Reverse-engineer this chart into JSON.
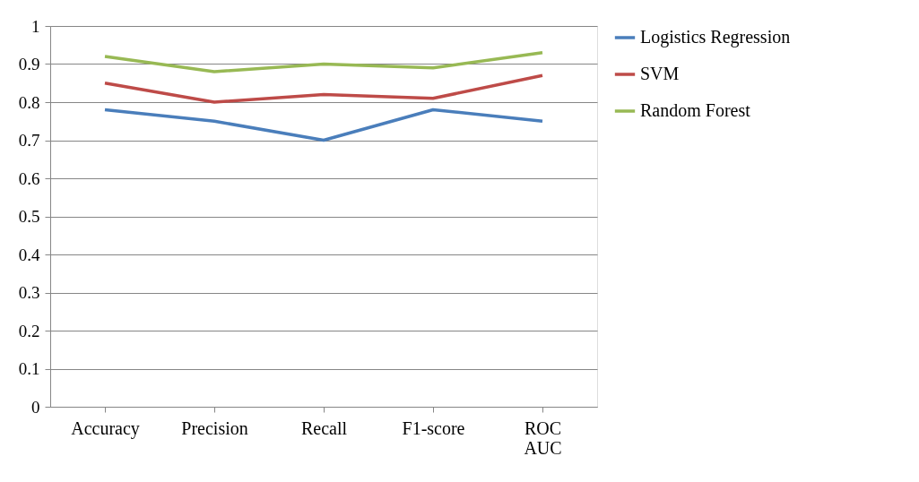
{
  "chart_data": {
    "type": "line",
    "categories": [
      "Accuracy",
      "Precision",
      "Recall",
      "F1-score",
      "ROC AUC"
    ],
    "series": [
      {
        "name": "Logistics Regression",
        "color": "#4a7ebb",
        "values": [
          0.78,
          0.75,
          0.7,
          0.78,
          0.75
        ]
      },
      {
        "name": "SVM",
        "color": "#be4b48",
        "values": [
          0.85,
          0.8,
          0.82,
          0.81,
          0.87
        ]
      },
      {
        "name": "Random Forest",
        "color": "#98b954",
        "values": [
          0.92,
          0.88,
          0.9,
          0.89,
          0.93
        ]
      }
    ],
    "ylim": [
      0,
      1
    ],
    "yticks": [
      0,
      0.1,
      0.2,
      0.3,
      0.4,
      0.5,
      0.6,
      0.7,
      0.8,
      0.9,
      1
    ],
    "grid": "y",
    "legend": "right",
    "marker": "none",
    "line_style": "solid"
  }
}
